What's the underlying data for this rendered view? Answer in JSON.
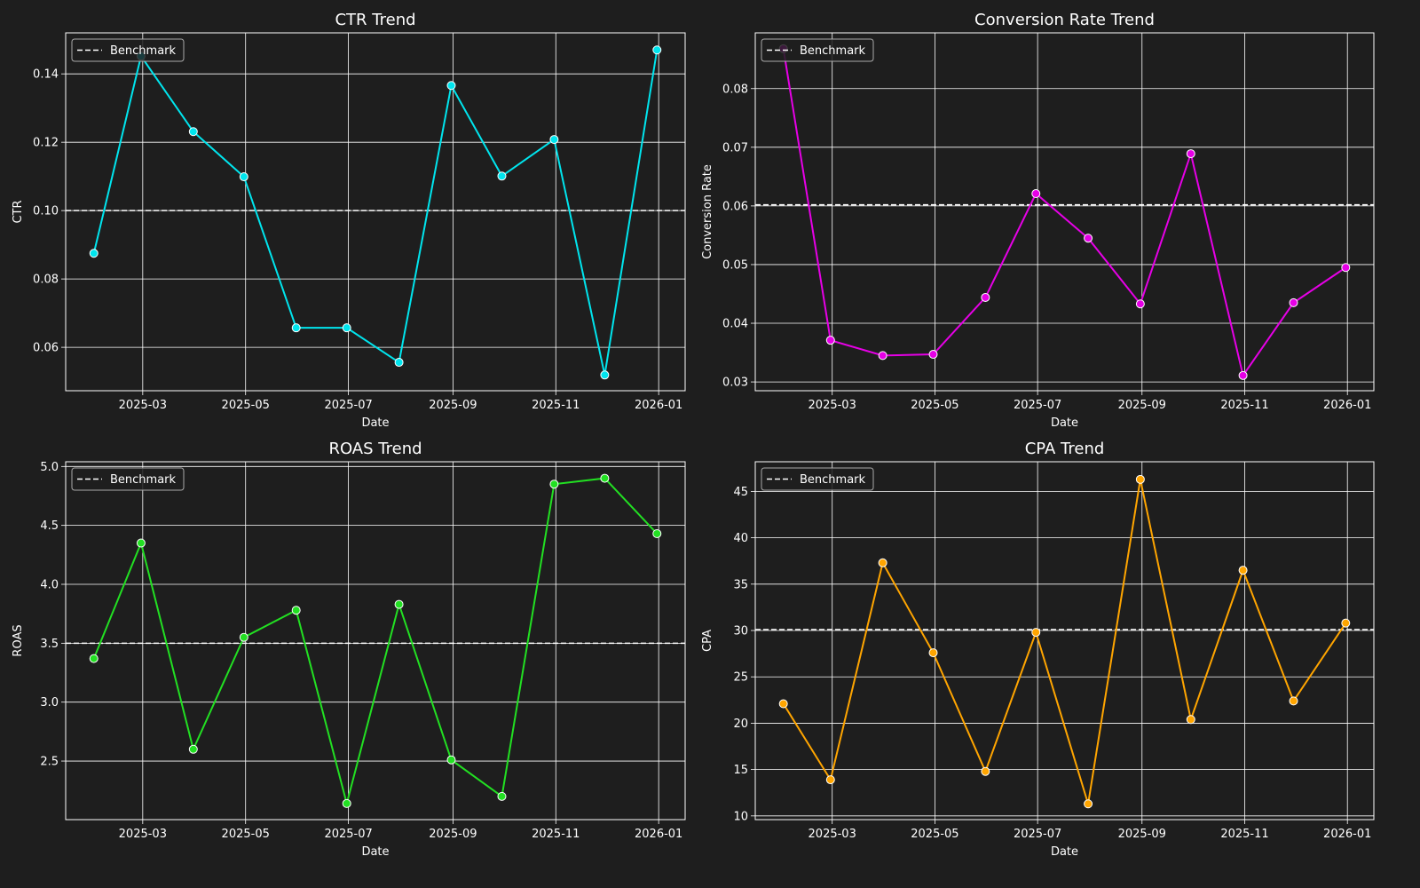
{
  "chart_data": [
    {
      "type": "line",
      "title": "CTR Trend",
      "xlabel": "Date",
      "ylabel": "CTR",
      "x": [
        "2025-01-31",
        "2025-02-28",
        "2025-03-31",
        "2025-04-30",
        "2025-05-31",
        "2025-06-30",
        "2025-07-31",
        "2025-08-31",
        "2025-09-30",
        "2025-10-31",
        "2025-11-30",
        "2025-12-31"
      ],
      "x_ticks": [
        "2025-03",
        "2025-05",
        "2025-07",
        "2025-09",
        "2025-11",
        "2026-01"
      ],
      "values": [
        0.0875,
        0.1452,
        0.1231,
        0.1099,
        0.0657,
        0.0657,
        0.0556,
        0.1366,
        0.1101,
        0.1208,
        0.0519,
        0.147
      ],
      "benchmark": 0.1,
      "y_ticks": [
        0.06,
        0.08,
        0.1,
        0.12,
        0.14
      ],
      "y_tick_labels": [
        "0.06",
        "0.08",
        "0.10",
        "0.12",
        "0.14"
      ],
      "ylim": [
        0.0473,
        0.152
      ],
      "color": "#00e5ee",
      "legend": {
        "label": "Benchmark",
        "position": "upper-left"
      },
      "grid": true
    },
    {
      "type": "line",
      "title": "Conversion Rate Trend",
      "xlabel": "Date",
      "ylabel": "Conversion Rate",
      "x": [
        "2025-01-31",
        "2025-02-28",
        "2025-03-31",
        "2025-04-30",
        "2025-05-31",
        "2025-06-30",
        "2025-07-31",
        "2025-08-31",
        "2025-09-30",
        "2025-10-31",
        "2025-11-30",
        "2025-12-31"
      ],
      "x_ticks": [
        "2025-03",
        "2025-05",
        "2025-07",
        "2025-09",
        "2025-11",
        "2026-01"
      ],
      "values": [
        0.0868,
        0.0371,
        0.0345,
        0.0347,
        0.0444,
        0.0621,
        0.0545,
        0.0433,
        0.0689,
        0.0311,
        0.0435,
        0.0495
      ],
      "benchmark": 0.0602,
      "y_ticks": [
        0.03,
        0.04,
        0.05,
        0.06,
        0.07,
        0.08
      ],
      "y_tick_labels": [
        "0.03",
        "0.04",
        "0.05",
        "0.06",
        "0.07",
        "0.08"
      ],
      "ylim": [
        0.0285,
        0.0895
      ],
      "color": "#e600e6",
      "legend": {
        "label": "Benchmark",
        "position": "upper-left"
      },
      "grid": true
    },
    {
      "type": "line",
      "title": "ROAS Trend",
      "xlabel": "Date",
      "ylabel": "ROAS",
      "x": [
        "2025-01-31",
        "2025-02-28",
        "2025-03-31",
        "2025-04-30",
        "2025-05-31",
        "2025-06-30",
        "2025-07-31",
        "2025-08-31",
        "2025-09-30",
        "2025-10-31",
        "2025-11-30",
        "2025-12-31"
      ],
      "x_ticks": [
        "2025-03",
        "2025-05",
        "2025-07",
        "2025-09",
        "2025-11",
        "2026-01"
      ],
      "values": [
        3.37,
        4.35,
        2.6,
        3.55,
        3.78,
        2.14,
        3.83,
        2.51,
        2.2,
        4.85,
        4.9,
        4.43
      ],
      "benchmark": 3.5,
      "y_ticks": [
        2.5,
        3.0,
        3.5,
        4.0,
        4.5,
        5.0
      ],
      "y_tick_labels": [
        "2.5",
        "3.0",
        "3.5",
        "4.0",
        "4.5",
        "5.0"
      ],
      "ylim": [
        2.003,
        5.04
      ],
      "color": "#22e022",
      "legend": {
        "label": "Benchmark",
        "position": "upper-left"
      },
      "grid": true
    },
    {
      "type": "line",
      "title": "CPA Trend",
      "xlabel": "Date",
      "ylabel": "CPA",
      "x": [
        "2025-01-31",
        "2025-02-28",
        "2025-03-31",
        "2025-04-30",
        "2025-05-31",
        "2025-06-30",
        "2025-07-31",
        "2025-08-31",
        "2025-09-30",
        "2025-10-31",
        "2025-11-30",
        "2025-12-31"
      ],
      "x_ticks": [
        "2025-03",
        "2025-05",
        "2025-07",
        "2025-09",
        "2025-11",
        "2026-01"
      ],
      "values": [
        22.1,
        13.9,
        37.3,
        27.6,
        14.8,
        29.8,
        11.3,
        46.3,
        20.4,
        36.5,
        22.4,
        30.8
      ],
      "benchmark": 30.1,
      "y_ticks": [
        10,
        15,
        20,
        25,
        30,
        35,
        40,
        45
      ],
      "y_tick_labels": [
        "10",
        "15",
        "20",
        "25",
        "30",
        "35",
        "40",
        "45"
      ],
      "ylim": [
        9.6,
        48.2
      ],
      "color": "#ffa500",
      "legend": {
        "label": "Benchmark",
        "position": "upper-left"
      },
      "grid": true
    }
  ]
}
